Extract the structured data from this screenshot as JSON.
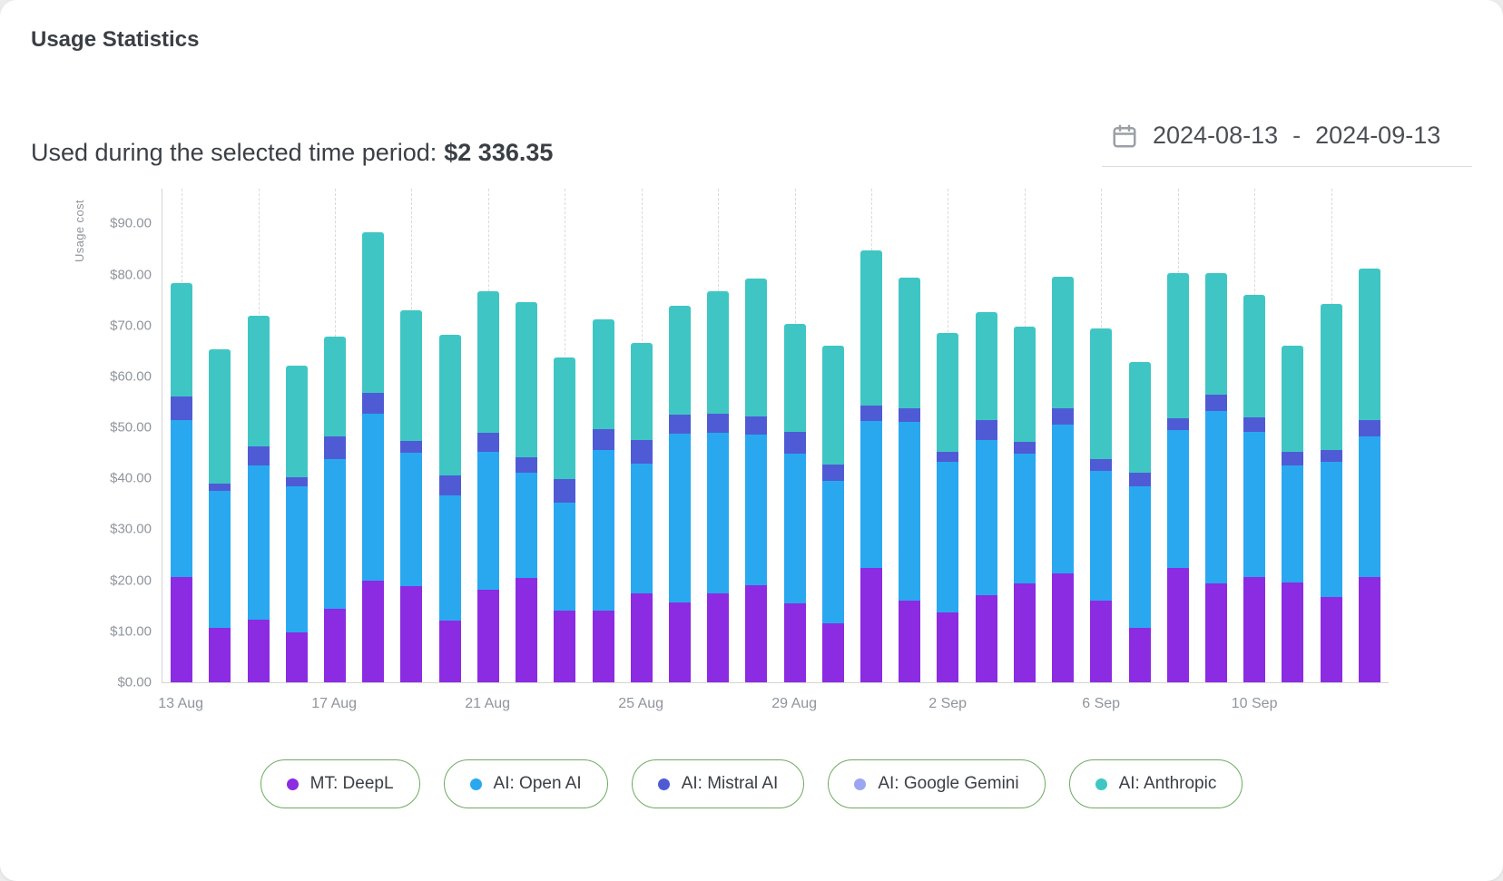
{
  "page": {
    "title": "Usage Statistics"
  },
  "summary": {
    "label": "Used during the selected time period:",
    "amount": "$2 336.35"
  },
  "date_range": {
    "icon": "calendar-icon",
    "start": "2024-08-13",
    "separator": "-",
    "end": "2024-09-13"
  },
  "chart_data": {
    "type": "bar",
    "stacked": true,
    "title": "Usage Statistics",
    "xlabel": "",
    "ylabel": "Usage cost",
    "ylim": [
      0,
      97
    ],
    "grid": "vertical-dashed",
    "legend_position": "bottom",
    "y_ticks": [
      "$0.00",
      "$10.00",
      "$20.00",
      "$30.00",
      "$40.00",
      "$50.00",
      "$60.00",
      "$70.00",
      "$80.00",
      "$90.00"
    ],
    "y_tick_values": [
      0,
      10,
      20,
      30,
      40,
      50,
      60,
      70,
      80,
      90
    ],
    "x_tick_labels": [
      "13 Aug",
      "17 Aug",
      "21 Aug",
      "25 Aug",
      "29 Aug",
      "2 Sep",
      "6 Sep",
      "10 Sep"
    ],
    "x_tick_every": 4,
    "categories": [
      "13 Aug",
      "14 Aug",
      "15 Aug",
      "16 Aug",
      "17 Aug",
      "18 Aug",
      "19 Aug",
      "20 Aug",
      "21 Aug",
      "22 Aug",
      "23 Aug",
      "24 Aug",
      "25 Aug",
      "26 Aug",
      "27 Aug",
      "28 Aug",
      "29 Aug",
      "30 Aug",
      "31 Aug",
      "1 Sep",
      "2 Sep",
      "3 Sep",
      "4 Sep",
      "5 Sep",
      "6 Sep",
      "7 Sep",
      "8 Sep",
      "9 Sep",
      "10 Sep",
      "11 Sep",
      "12 Sep",
      "13 Sep"
    ],
    "series": [
      {
        "name": "MT: DeepL",
        "color": "#8b2be2",
        "values": [
          20.7,
          10.7,
          12.2,
          9.8,
          14.4,
          19.9,
          18.9,
          12.1,
          18.2,
          20.4,
          14.1,
          14.0,
          17.4,
          15.6,
          17.5,
          19.1,
          15.4,
          11.6,
          22.4,
          16.0,
          13.7,
          17.1,
          19.4,
          21.4,
          16.0,
          10.7,
          22.4,
          19.4,
          20.6,
          19.6,
          16.7,
          20.6
        ]
      },
      {
        "name": "AI: Open AI",
        "color": "#29a8f0",
        "values": [
          30.8,
          26.8,
          30.3,
          28.7,
          29.3,
          32.8,
          26.1,
          24.5,
          27.1,
          20.8,
          21.1,
          31.5,
          25.5,
          33.2,
          31.4,
          29.5,
          29.5,
          27.9,
          28.9,
          35.0,
          29.6,
          30.4,
          25.4,
          29.1,
          25.5,
          27.8,
          27.1,
          33.9,
          28.6,
          23.0,
          26.5,
          27.7
        ]
      },
      {
        "name": "AI: Mistral AI",
        "color": "#4f5bd5",
        "values": [
          4.5,
          1.5,
          3.7,
          1.8,
          4.6,
          4.1,
          2.3,
          3.9,
          3.7,
          3.0,
          4.6,
          4.1,
          4.7,
          3.7,
          3.7,
          3.6,
          4.2,
          3.2,
          3.0,
          2.7,
          1.9,
          4.0,
          2.4,
          3.3,
          2.2,
          2.7,
          2.3,
          3.1,
          2.7,
          2.6,
          2.3,
          3.1
        ]
      },
      {
        "name": "AI: Google Gemini",
        "color": "#9ba5f2",
        "values": [
          0,
          0,
          0,
          0,
          0,
          0,
          0,
          0,
          0,
          0,
          0,
          0,
          0,
          0,
          0,
          0,
          0,
          0,
          0,
          0,
          0,
          0,
          0,
          0,
          0,
          0,
          0,
          0,
          0,
          0,
          0,
          0
        ]
      },
      {
        "name": "AI: Anthropic",
        "color": "#3fc6c4",
        "values": [
          22.3,
          26.3,
          25.7,
          21.8,
          19.6,
          31.4,
          25.7,
          27.6,
          27.8,
          30.4,
          24.0,
          21.6,
          18.9,
          21.3,
          24.2,
          27.0,
          21.2,
          23.4,
          30.4,
          25.6,
          23.3,
          21.2,
          22.6,
          25.8,
          25.8,
          21.7,
          28.4,
          23.8,
          24.1,
          20.8,
          28.7,
          29.8
        ]
      }
    ]
  }
}
